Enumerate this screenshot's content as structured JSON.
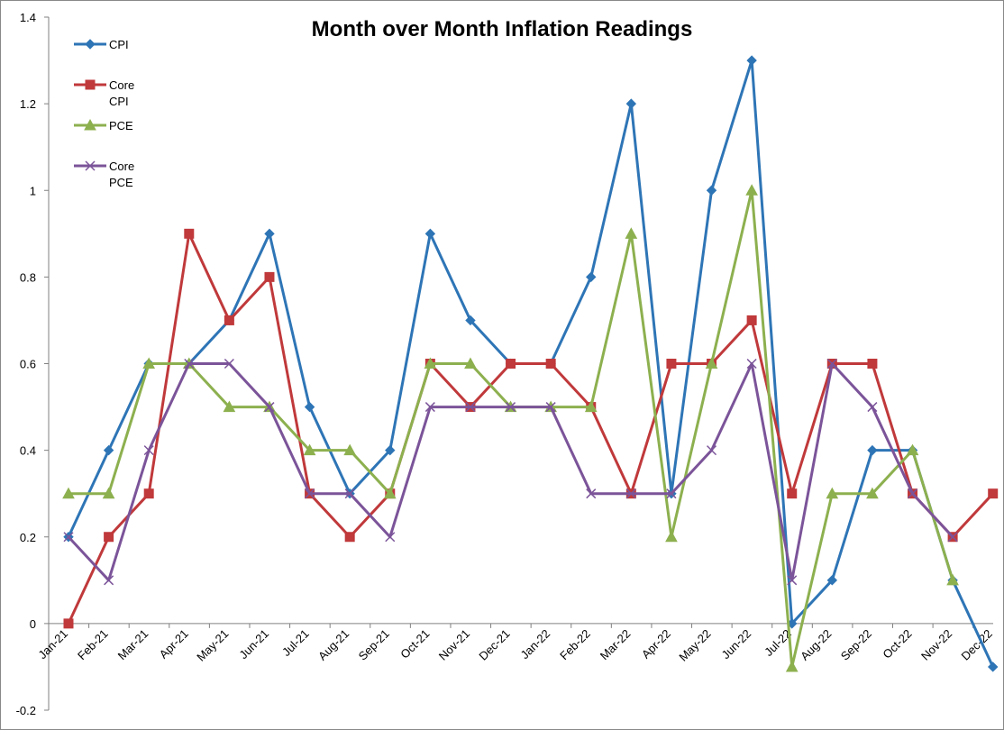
{
  "chart_data": {
    "type": "line",
    "title": "Month over Month Inflation Readings",
    "xlabel": "",
    "ylabel": "",
    "ylim": [
      -0.2,
      1.4
    ],
    "y_ticks": [
      "-0.2",
      "0",
      "0.2",
      "0.4",
      "0.6",
      "0.8",
      "1",
      "1.2",
      "1.4"
    ],
    "y_tick_values": [
      -0.2,
      0,
      0.2,
      0.4,
      0.6,
      0.8,
      1.0,
      1.2,
      1.4
    ],
    "grid": false,
    "legend_position": "top-left",
    "categories": [
      "Jan-21",
      "Feb-21",
      "Mar-21",
      "Apr-21",
      "May-21",
      "Jun-21",
      "Jul-21",
      "Aug-21",
      "Sep-21",
      "Oct-21",
      "Nov-21",
      "Dec-21",
      "Jan-22",
      "Feb-22",
      "Mar-22",
      "Apr-22",
      "May-22",
      "Jun-22",
      "Jul-22",
      "Aug-22",
      "Sep-22",
      "Oct-22",
      "Nov-22",
      "Dec-22"
    ],
    "series": [
      {
        "name": "CPI",
        "label_lines": [
          "CPI"
        ],
        "color": "#2E75B6",
        "marker": "diamond",
        "values": [
          0.2,
          0.4,
          0.6,
          0.6,
          0.7,
          0.9,
          0.5,
          0.3,
          0.4,
          0.9,
          0.7,
          0.6,
          0.6,
          0.8,
          1.2,
          0.3,
          1.0,
          1.3,
          0.0,
          0.1,
          0.4,
          0.4,
          0.1,
          -0.1
        ]
      },
      {
        "name": "Core CPI",
        "label_lines": [
          "Core",
          "CPI"
        ],
        "color": "#C0393B",
        "marker": "square",
        "values": [
          0.0,
          0.2,
          0.3,
          0.9,
          0.7,
          0.8,
          0.3,
          0.2,
          0.3,
          0.6,
          0.5,
          0.6,
          0.6,
          0.5,
          0.3,
          0.6,
          0.6,
          0.7,
          0.3,
          0.6,
          0.6,
          0.3,
          0.2,
          0.3
        ]
      },
      {
        "name": "PCE",
        "label_lines": [
          "PCE"
        ],
        "color": "#8DB04F",
        "marker": "triangle",
        "values": [
          0.3,
          0.3,
          0.6,
          0.6,
          0.5,
          0.5,
          0.4,
          0.4,
          0.3,
          0.6,
          0.6,
          0.5,
          0.5,
          0.5,
          0.9,
          0.2,
          0.6,
          1.0,
          -0.1,
          0.3,
          0.3,
          0.4,
          0.1,
          null
        ]
      },
      {
        "name": "Core PCE",
        "label_lines": [
          "Core",
          "PCE"
        ],
        "color": "#7B5499",
        "marker": "x",
        "values": [
          0.2,
          0.1,
          0.4,
          0.6,
          0.6,
          0.5,
          0.3,
          0.3,
          0.2,
          0.5,
          0.5,
          0.5,
          0.5,
          0.3,
          0.3,
          0.3,
          0.4,
          0.6,
          0.1,
          0.6,
          0.5,
          0.3,
          0.2,
          null
        ]
      }
    ]
  }
}
